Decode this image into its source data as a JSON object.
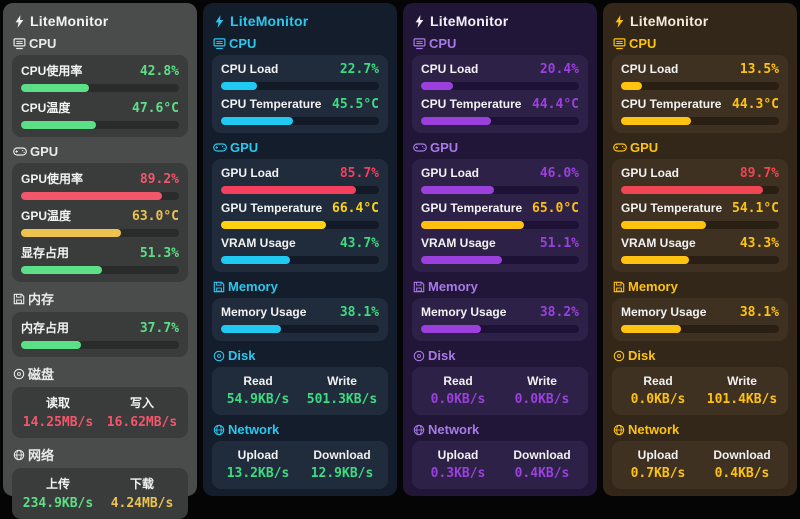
{
  "app": {
    "name": "LiteMonitor"
  },
  "panels": [
    {
      "title": "LiteMonitor",
      "theme": {
        "bg": "#4a4c4c",
        "card": "#3a3c3c",
        "track": "#2a2c2c",
        "title_color": "#f3f3f3",
        "bolt_color": "#f3f3f3",
        "accent": "#eaeaea",
        "palette": {
          "green": "#5ce087",
          "red": "#f2566b",
          "yellow": "#edc24e"
        }
      },
      "sections": [
        {
          "kind": "meters",
          "icon": "cpu-icon",
          "label": "CPU",
          "rows": [
            {
              "label": "CPU使用率",
              "value": "42.8%",
              "pct": 42.8,
              "color": "green"
            },
            {
              "label": "CPU温度",
              "value": "47.6°C",
              "pct": 47.6,
              "color": "green"
            }
          ]
        },
        {
          "kind": "meters",
          "icon": "gpu-icon",
          "label": "GPU",
          "rows": [
            {
              "label": "GPU使用率",
              "value": "89.2%",
              "pct": 89.2,
              "color": "red"
            },
            {
              "label": "GPU温度",
              "value": "63.0°C",
              "pct": 63.0,
              "color": "yellow"
            },
            {
              "label": "显存占用",
              "value": "51.3%",
              "pct": 51.3,
              "color": "green"
            }
          ]
        },
        {
          "kind": "meters",
          "icon": "memory-icon",
          "label": "内存",
          "rows": [
            {
              "label": "内存占用",
              "value": "37.7%",
              "pct": 37.7,
              "color": "green"
            }
          ]
        },
        {
          "kind": "duo",
          "icon": "disk-icon",
          "label": "磁盘",
          "cols": [
            {
              "label": "读取",
              "value": "14.25MB/s",
              "color": "red"
            },
            {
              "label": "写入",
              "value": "16.62MB/s",
              "color": "red"
            }
          ]
        },
        {
          "kind": "duo",
          "icon": "network-icon",
          "label": "网络",
          "cols": [
            {
              "label": "上传",
              "value": "234.9KB/s",
              "color": "green"
            },
            {
              "label": "下载",
              "value": "4.24MB/s",
              "color": "yellow"
            }
          ]
        }
      ]
    },
    {
      "title": "LiteMonitor",
      "theme": {
        "bg": "#141d2c",
        "card": "#202b3b",
        "track": "#121a27",
        "title_color": "#2ac8ee",
        "bolt_color": "#2ac8ee",
        "accent": "#2ac8ee",
        "palette": {
          "green": "#3cdc81",
          "red": "#f53f5e",
          "yellow": "#ffd211",
          "cyan": "#1fc9f2"
        }
      },
      "sections": [
        {
          "kind": "meters",
          "icon": "cpu-icon",
          "label": "CPU",
          "rows": [
            {
              "label": "CPU Load",
              "value": "22.7%",
              "pct": 22.7,
              "color": "green",
              "bar": "cyan"
            },
            {
              "label": "CPU Temperature",
              "value": "45.5°C",
              "pct": 45.5,
              "color": "green",
              "bar": "cyan"
            }
          ]
        },
        {
          "kind": "meters",
          "icon": "gpu-icon",
          "label": "GPU",
          "rows": [
            {
              "label": "GPU Load",
              "value": "85.7%",
              "pct": 85.7,
              "color": "red"
            },
            {
              "label": "GPU Temperature",
              "value": "66.4°C",
              "pct": 66.4,
              "color": "yellow"
            },
            {
              "label": "VRAM Usage",
              "value": "43.7%",
              "pct": 43.7,
              "color": "green",
              "bar": "cyan"
            }
          ]
        },
        {
          "kind": "meters",
          "icon": "memory-icon",
          "label": "Memory",
          "rows": [
            {
              "label": "Memory Usage",
              "value": "38.1%",
              "pct": 38.1,
              "color": "green",
              "bar": "cyan"
            }
          ]
        },
        {
          "kind": "duo",
          "icon": "disk-icon",
          "label": "Disk",
          "cols": [
            {
              "label": "Read",
              "value": "54.9KB/s",
              "color": "green"
            },
            {
              "label": "Write",
              "value": "501.3KB/s",
              "color": "green"
            }
          ]
        },
        {
          "kind": "duo",
          "icon": "network-icon",
          "label": "Network",
          "cols": [
            {
              "label": "Upload",
              "value": "13.2KB/s",
              "color": "green"
            },
            {
              "label": "Download",
              "value": "12.9KB/s",
              "color": "green"
            }
          ]
        }
      ]
    },
    {
      "title": "LiteMonitor",
      "theme": {
        "bg": "#211637",
        "card": "#2d2148",
        "track": "#1d1236",
        "title_color": "#f3f0fa",
        "bolt_color": "#f3f0fa",
        "accent": "#a87ae8",
        "palette": {
          "purple": "#9c40dd",
          "yellow": "#ffc00e"
        }
      },
      "sections": [
        {
          "kind": "meters",
          "icon": "cpu-icon",
          "label": "CPU",
          "rows": [
            {
              "label": "CPU Load",
              "value": "20.4%",
              "pct": 20.4,
              "color": "purple"
            },
            {
              "label": "CPU Temperature",
              "value": "44.4°C",
              "pct": 44.4,
              "color": "purple"
            }
          ]
        },
        {
          "kind": "meters",
          "icon": "gpu-icon",
          "label": "GPU",
          "rows": [
            {
              "label": "GPU Load",
              "value": "46.0%",
              "pct": 46.0,
              "color": "purple"
            },
            {
              "label": "GPU Temperature",
              "value": "65.0°C",
              "pct": 65.0,
              "color": "yellow"
            },
            {
              "label": "VRAM Usage",
              "value": "51.1%",
              "pct": 51.1,
              "color": "purple"
            }
          ]
        },
        {
          "kind": "meters",
          "icon": "memory-icon",
          "label": "Memory",
          "rows": [
            {
              "label": "Memory Usage",
              "value": "38.2%",
              "pct": 38.2,
              "color": "purple"
            }
          ]
        },
        {
          "kind": "duo",
          "icon": "disk-icon",
          "label": "Disk",
          "cols": [
            {
              "label": "Read",
              "value": "0.0KB/s",
              "color": "purple"
            },
            {
              "label": "Write",
              "value": "0.0KB/s",
              "color": "purple"
            }
          ]
        },
        {
          "kind": "duo",
          "icon": "network-icon",
          "label": "Network",
          "cols": [
            {
              "label": "Upload",
              "value": "0.3KB/s",
              "color": "purple"
            },
            {
              "label": "Download",
              "value": "0.4KB/s",
              "color": "purple"
            }
          ]
        }
      ]
    },
    {
      "title": "LiteMonitor",
      "theme": {
        "bg": "#33271a",
        "card": "#3e3122",
        "track": "#291f12",
        "title_color": "#f3ead8",
        "bolt_color": "#ffc30f",
        "accent": "#ffc30f",
        "palette": {
          "yellow": "#ffc30f",
          "red": "#f04552"
        }
      },
      "sections": [
        {
          "kind": "meters",
          "icon": "cpu-icon",
          "label": "CPU",
          "rows": [
            {
              "label": "CPU Load",
              "value": "13.5%",
              "pct": 13.5,
              "color": "yellow"
            },
            {
              "label": "CPU Temperature",
              "value": "44.3°C",
              "pct": 44.3,
              "color": "yellow"
            }
          ]
        },
        {
          "kind": "meters",
          "icon": "gpu-icon",
          "label": "GPU",
          "rows": [
            {
              "label": "GPU Load",
              "value": "89.7%",
              "pct": 89.7,
              "color": "red"
            },
            {
              "label": "GPU Temperature",
              "value": "54.1°C",
              "pct": 54.1,
              "color": "yellow"
            },
            {
              "label": "VRAM Usage",
              "value": "43.3%",
              "pct": 43.3,
              "color": "yellow"
            }
          ]
        },
        {
          "kind": "meters",
          "icon": "memory-icon",
          "label": "Memory",
          "rows": [
            {
              "label": "Memory Usage",
              "value": "38.1%",
              "pct": 38.1,
              "color": "yellow"
            }
          ]
        },
        {
          "kind": "duo",
          "icon": "disk-icon",
          "label": "Disk",
          "cols": [
            {
              "label": "Read",
              "value": "0.0KB/s",
              "color": "yellow"
            },
            {
              "label": "Write",
              "value": "101.4KB/s",
              "color": "yellow"
            }
          ]
        },
        {
          "kind": "duo",
          "icon": "network-icon",
          "label": "Network",
          "cols": [
            {
              "label": "Upload",
              "value": "0.7KB/s",
              "color": "yellow"
            },
            {
              "label": "Download",
              "value": "0.4KB/s",
              "color": "yellow"
            }
          ]
        }
      ]
    }
  ]
}
